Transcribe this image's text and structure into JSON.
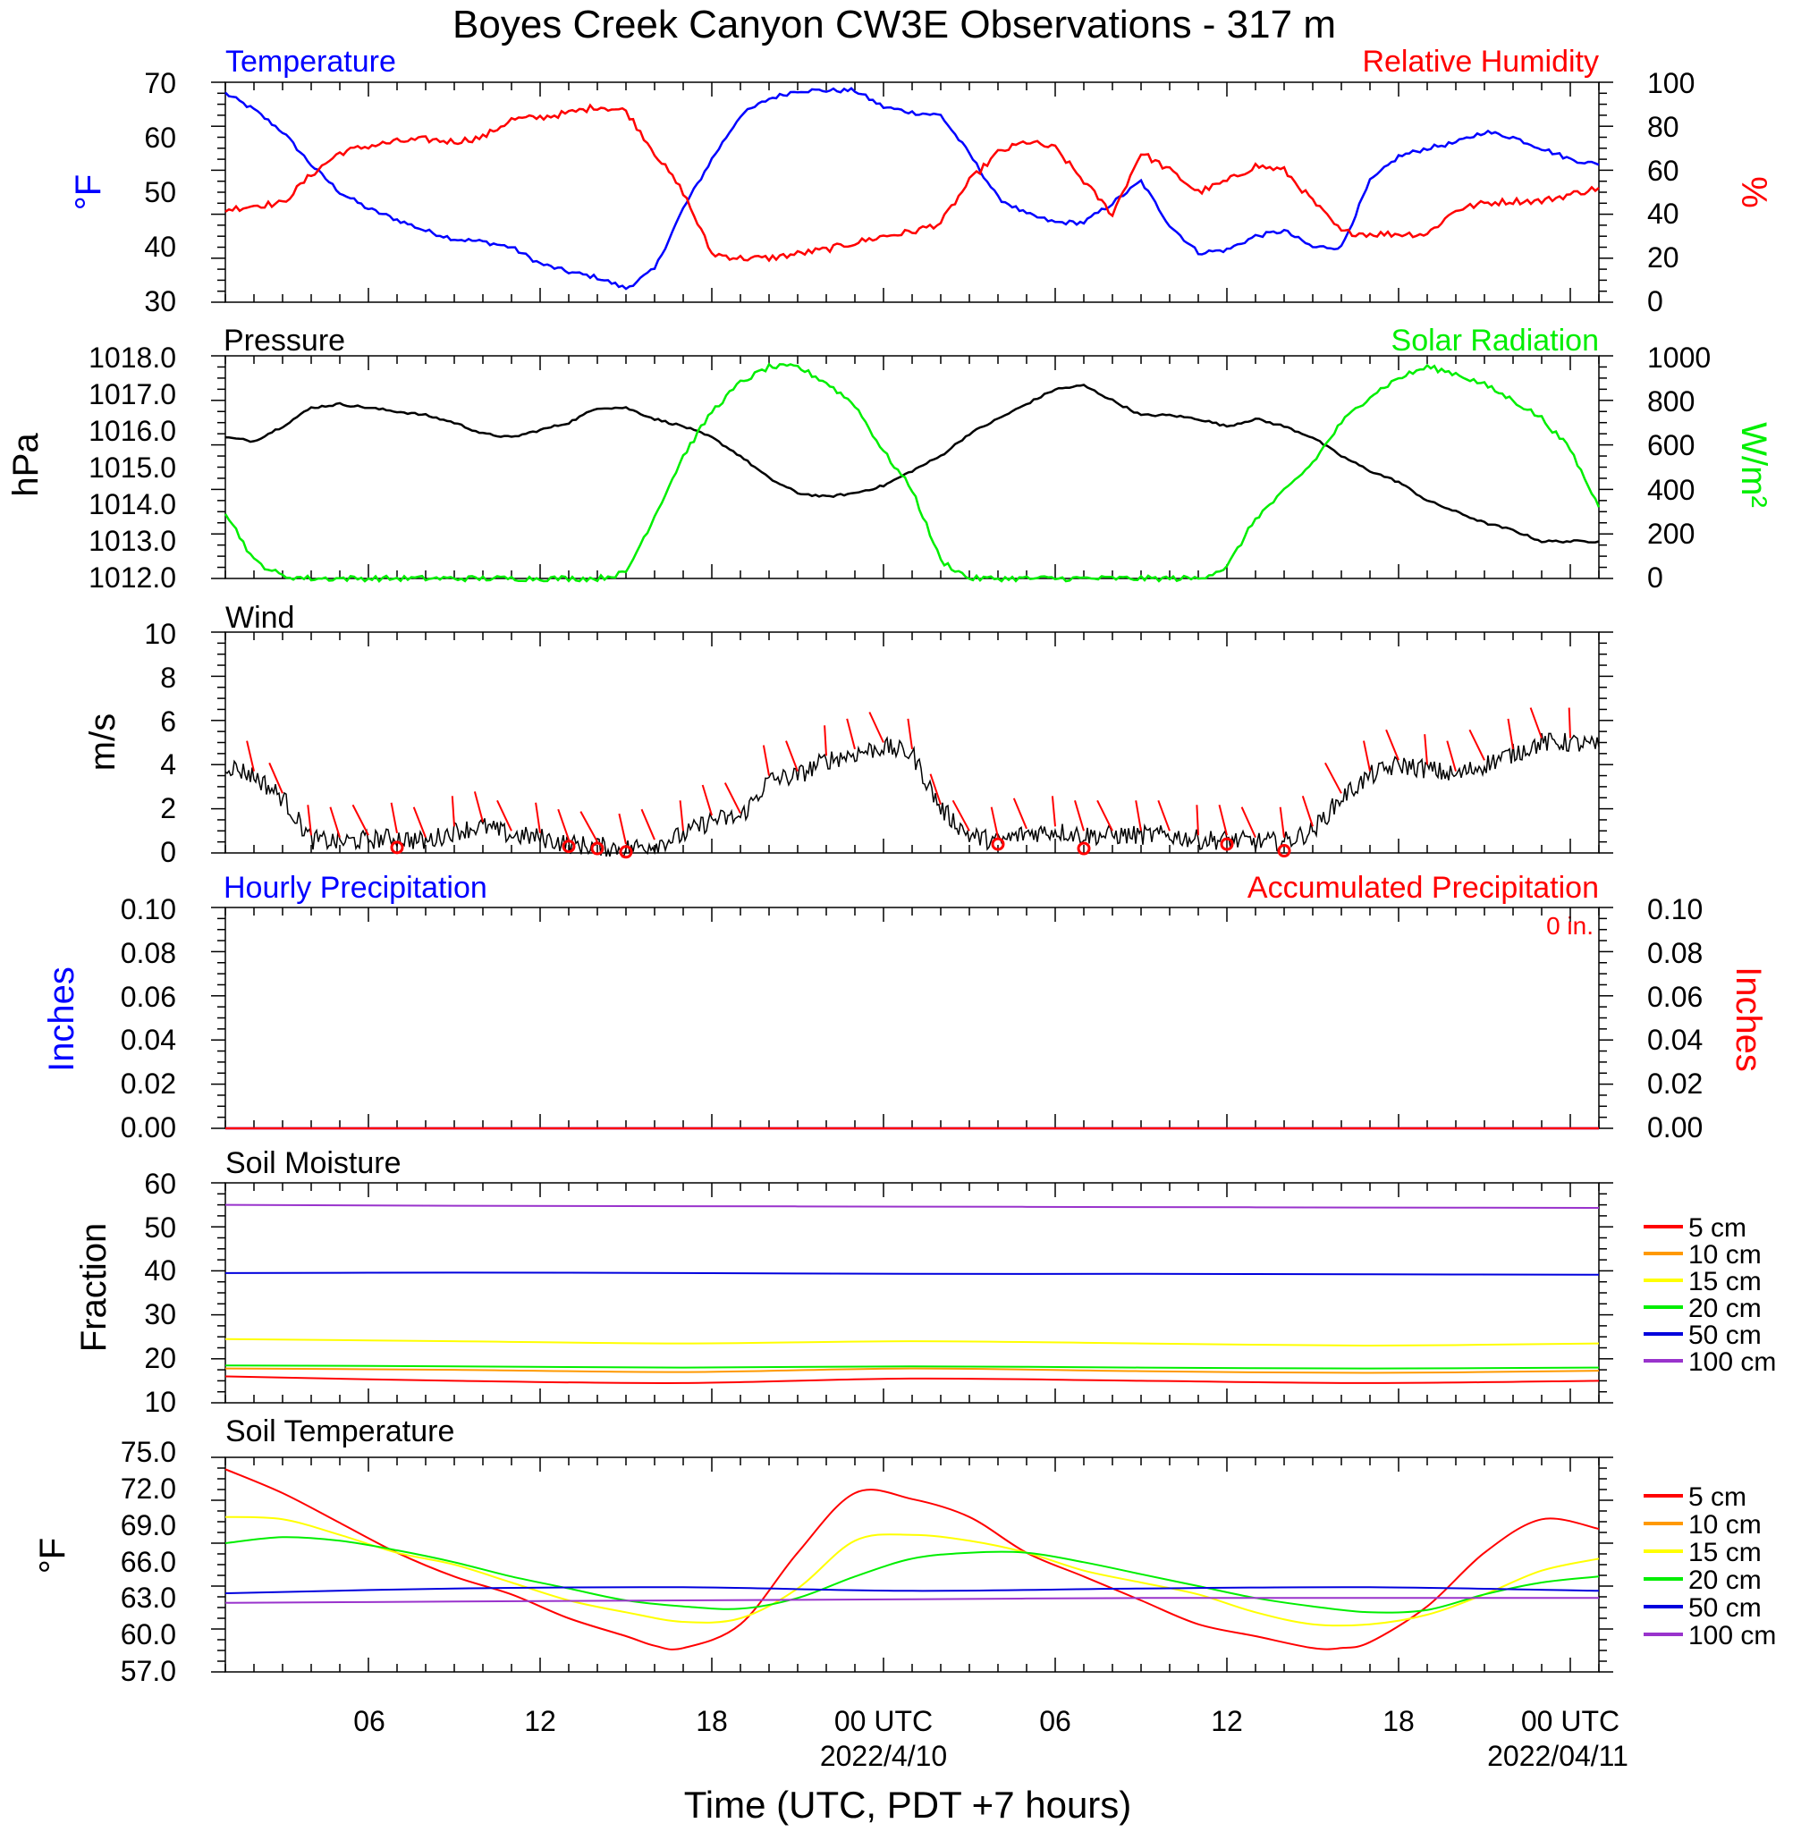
{
  "title": "Boyes Creek Canyon CW3E Observations - 317 m",
  "xaxis": {
    "label": "Time (UTC, PDT +7 hours)",
    "tick_labels": [
      "06",
      "12",
      "18",
      "00 UTC",
      "06",
      "12",
      "18",
      "00 UTC"
    ],
    "date_labels": [
      "2022/4/10",
      "2022/04/11"
    ]
  },
  "colors": {
    "temperature": "#0000ff",
    "rh": "#ff0000",
    "solar": "#00ee00",
    "black": "#000000",
    "cm5": "#ff0000",
    "cm10": "#ff9900",
    "cm15": "#ffff00",
    "cm20": "#00ee00",
    "cm50": "#0000dd",
    "cm100": "#9933cc"
  },
  "panels": {
    "temp_rh": {
      "left_title": "Temperature",
      "right_title": "Relative Humidity",
      "left_unit": "°F",
      "right_unit": "%",
      "left_ticks": [
        "70",
        "60",
        "50",
        "40",
        "30"
      ],
      "right_ticks": [
        "100",
        "80",
        "60",
        "40",
        "20",
        "0"
      ]
    },
    "pressure_solar": {
      "left_title": "Pressure",
      "right_title": "Solar Radiation",
      "left_unit": "hPa",
      "right_unit": "W/m²",
      "left_ticks": [
        "1018.0",
        "1017.0",
        "1016.0",
        "1015.0",
        "1014.0",
        "1013.0",
        "1012.0"
      ],
      "right_ticks": [
        "1000",
        "800",
        "600",
        "400",
        "200",
        "0"
      ]
    },
    "wind": {
      "left_title": "Wind",
      "left_unit": "m/s",
      "left_ticks": [
        "10",
        "8",
        "6",
        "4",
        "2",
        "0"
      ]
    },
    "precip": {
      "left_title": "Hourly Precipitation",
      "right_title": "Accumulated Precipitation",
      "accum_label": "0 in.",
      "left_unit": "Inches",
      "right_unit": "Inches",
      "left_ticks": [
        "0.10",
        "0.08",
        "0.06",
        "0.04",
        "0.02",
        "0.00"
      ],
      "right_ticks": [
        "0.10",
        "0.08",
        "0.06",
        "0.04",
        "0.02",
        "0.00"
      ]
    },
    "soil_moisture": {
      "left_title": "Soil Moisture",
      "left_unit": "Fraction",
      "left_ticks": [
        "60",
        "50",
        "40",
        "30",
        "20",
        "10"
      ],
      "legend": [
        "5 cm",
        "10 cm",
        "15 cm",
        "20 cm",
        "50 cm",
        "100 cm"
      ]
    },
    "soil_temp": {
      "left_title": "Soil Temperature",
      "left_unit": "°F",
      "left_ticks": [
        "75.0",
        "72.0",
        "69.0",
        "66.0",
        "63.0",
        "60.0",
        "57.0"
      ],
      "legend": [
        "5 cm",
        "10 cm",
        "15 cm",
        "20 cm",
        "50 cm",
        "100 cm"
      ]
    }
  },
  "chart_data": [
    {
      "type": "line",
      "title": "Temperature / Relative Humidity",
      "x_unit": "hours since 2022-04-09 01 UTC",
      "xlim": [
        0,
        48
      ],
      "ylim_left": [
        30,
        70
      ],
      "ylim_right": [
        0,
        100
      ],
      "series": [
        {
          "name": "Temperature",
          "axis": "left",
          "x": [
            0,
            1,
            2,
            3,
            4,
            5,
            6,
            7,
            8,
            9,
            10,
            11,
            12,
            13,
            14,
            15,
            16,
            17,
            18,
            19,
            20,
            21,
            22,
            23,
            24,
            25,
            26,
            27,
            28,
            29,
            30,
            31,
            32,
            33,
            34,
            35,
            36,
            37,
            38,
            39,
            40,
            41,
            42,
            43,
            44,
            45,
            46,
            47,
            48
          ],
          "y": [
            68,
            65,
            61,
            55,
            50,
            47,
            45,
            43,
            41.5,
            41,
            40,
            37,
            35.5,
            34.5,
            32.5,
            36,
            47,
            56,
            64,
            67,
            68.5,
            68.5,
            68.5,
            65.5,
            64.5,
            64,
            57,
            49,
            46,
            44.5,
            44.5,
            48,
            52,
            44,
            39,
            39.5,
            42,
            43,
            40,
            40,
            52,
            56.5,
            58,
            59,
            61,
            60,
            58,
            56,
            55
          ]
        },
        {
          "name": "Relative Humidity",
          "axis": "right",
          "x": [
            0,
            1,
            2,
            3,
            4,
            5,
            6,
            7,
            8,
            9,
            10,
            11,
            12,
            13,
            14,
            15,
            16,
            17,
            18,
            19,
            20,
            21,
            22,
            23,
            24,
            25,
            26,
            27,
            28,
            29,
            30,
            31,
            32,
            33,
            34,
            35,
            36,
            37,
            38,
            39,
            40,
            41,
            42,
            43,
            44,
            45,
            46,
            47,
            48
          ],
          "y": [
            42,
            44,
            45,
            58,
            68,
            71,
            73,
            74,
            73,
            75,
            83,
            84,
            86,
            89,
            87,
            68,
            50,
            22,
            20,
            20,
            22,
            24,
            27,
            30,
            32,
            36,
            55,
            68,
            73,
            70,
            55,
            40,
            68,
            60,
            50,
            55,
            62,
            60,
            46,
            32,
            31,
            31,
            31,
            42,
            45,
            46,
            46,
            49,
            52
          ]
        }
      ]
    },
    {
      "type": "line",
      "title": "Pressure / Solar Radiation",
      "x_unit": "hours since 2022-04-09 01 UTC",
      "xlim": [
        0,
        48
      ],
      "ylim_left": [
        1012,
        1018
      ],
      "ylim_right": [
        0,
        1000
      ],
      "series": [
        {
          "name": "Pressure",
          "axis": "left",
          "x": [
            0,
            1,
            2,
            3,
            4,
            5,
            6,
            7,
            8,
            9,
            10,
            11,
            12,
            13,
            14,
            15,
            16,
            17,
            18,
            19,
            20,
            21,
            22,
            23,
            24,
            25,
            26,
            27,
            28,
            29,
            30,
            31,
            32,
            33,
            34,
            35,
            36,
            37,
            38,
            39,
            40,
            41,
            42,
            43,
            44,
            45,
            46,
            47,
            48
          ],
          "y": [
            1015.8,
            1015.7,
            1016.1,
            1016.6,
            1016.7,
            1016.6,
            1016.5,
            1016.4,
            1016.2,
            1015.9,
            1015.8,
            1016.0,
            1016.2,
            1016.6,
            1016.6,
            1016.3,
            1016.1,
            1015.8,
            1015.3,
            1014.7,
            1014.3,
            1014.2,
            1014.3,
            1014.5,
            1014.9,
            1015.3,
            1015.9,
            1016.3,
            1016.7,
            1017.1,
            1017.2,
            1016.8,
            1016.4,
            1016.4,
            1016.3,
            1016.1,
            1016.3,
            1016.1,
            1015.8,
            1015.3,
            1014.9,
            1014.6,
            1014.1,
            1013.8,
            1013.5,
            1013.3,
            1013.0,
            1013.0,
            1013.0
          ]
        },
        {
          "name": "Solar Radiation",
          "axis": "right",
          "x": [
            0,
            1,
            2,
            3,
            4,
            5,
            6,
            7,
            8,
            9,
            10,
            11,
            12,
            13,
            14,
            15,
            16,
            17,
            18,
            19,
            20,
            21,
            22,
            23,
            24,
            25,
            26,
            27,
            28,
            29,
            30,
            31,
            32,
            33,
            34,
            35,
            36,
            37,
            38,
            39,
            40,
            41,
            42,
            43,
            44,
            45,
            46,
            47,
            48
          ],
          "y": [
            300,
            80,
            10,
            0,
            0,
            0,
            0,
            0,
            0,
            0,
            0,
            0,
            0,
            0,
            25,
            280,
            550,
            750,
            880,
            950,
            950,
            880,
            780,
            570,
            400,
            80,
            0,
            0,
            0,
            0,
            0,
            0,
            0,
            0,
            0,
            50,
            270,
            390,
            520,
            700,
            820,
            900,
            950,
            920,
            870,
            800,
            720,
            580,
            320
          ]
        }
      ]
    },
    {
      "type": "line",
      "title": "Wind",
      "x_unit": "hours since 2022-04-09 01 UTC",
      "xlim": [
        0,
        48
      ],
      "ylim": [
        0,
        10
      ],
      "series": [
        {
          "name": "Wind speed",
          "x": [
            0,
            1,
            2,
            3,
            4,
            5,
            6,
            7,
            8,
            9,
            10,
            11,
            12,
            13,
            14,
            15,
            16,
            17,
            18,
            19,
            20,
            21,
            22,
            23,
            24,
            25,
            26,
            27,
            28,
            29,
            30,
            31,
            32,
            33,
            34,
            35,
            36,
            37,
            38,
            39,
            40,
            41,
            42,
            43,
            44,
            45,
            46,
            47,
            48
          ],
          "y": [
            4.0,
            3.5,
            2.5,
            0.6,
            0.5,
            0.6,
            0.7,
            0.5,
            1.0,
            1.2,
            0.8,
            0.7,
            0.4,
            0.3,
            0.2,
            0.4,
            0.8,
            1.5,
            1.6,
            3.3,
            3.5,
            4.2,
            4.5,
            4.8,
            4.5,
            2.0,
            0.8,
            0.5,
            0.9,
            1.0,
            0.8,
            0.8,
            0.8,
            0.8,
            0.6,
            0.6,
            0.5,
            0.5,
            1.0,
            2.5,
            3.5,
            4.0,
            3.8,
            3.5,
            4.0,
            4.5,
            5.0,
            5.0,
            4.8
          ]
        },
        {
          "name": "Calm markers",
          "x": [
            6,
            12,
            13,
            14,
            27,
            30,
            35,
            37
          ],
          "y": [
            0.25,
            0.3,
            0.2,
            0.05,
            0.4,
            0.2,
            0.4,
            0.1
          ]
        }
      ]
    },
    {
      "type": "line",
      "title": "Precipitation",
      "x_unit": "hours since 2022-04-09 01 UTC",
      "xlim": [
        0,
        48
      ],
      "ylim_left": [
        0,
        0.1
      ],
      "ylim_right": [
        0,
        0.1
      ],
      "series": [
        {
          "name": "Hourly Precipitation",
          "axis": "left",
          "x": [
            0,
            48
          ],
          "y": [
            0,
            0
          ]
        },
        {
          "name": "Accumulated Precipitation",
          "axis": "right",
          "x": [
            0,
            48
          ],
          "y": [
            0,
            0
          ]
        }
      ]
    },
    {
      "type": "line",
      "title": "Soil Moisture",
      "x_unit": "hours since 2022-04-09 01 UTC",
      "xlim": [
        0,
        48
      ],
      "ylim": [
        10,
        60
      ],
      "series": [
        {
          "name": "5 cm",
          "x": [
            0,
            8,
            16,
            24,
            32,
            40,
            48
          ],
          "y": [
            16,
            15,
            14.5,
            15.5,
            15,
            14.5,
            15
          ]
        },
        {
          "name": "10 cm",
          "x": [
            0,
            8,
            16,
            24,
            32,
            40,
            48
          ],
          "y": [
            17.8,
            17.5,
            17,
            17.8,
            17.2,
            16.8,
            17.3
          ]
        },
        {
          "name": "15 cm",
          "x": [
            0,
            8,
            16,
            24,
            32,
            40,
            48
          ],
          "y": [
            24.5,
            24,
            23.5,
            24,
            23.5,
            23,
            23.5
          ]
        },
        {
          "name": "20 cm",
          "x": [
            0,
            8,
            16,
            24,
            32,
            40,
            48
          ],
          "y": [
            18.5,
            18.3,
            18,
            18.3,
            18,
            17.8,
            18
          ]
        },
        {
          "name": "50 cm",
          "x": [
            0,
            8,
            16,
            24,
            32,
            40,
            48
          ],
          "y": [
            39.5,
            39.6,
            39.5,
            39.3,
            39.3,
            39.2,
            39.1
          ]
        },
        {
          "name": "100 cm",
          "x": [
            0,
            8,
            16,
            24,
            32,
            40,
            48
          ],
          "y": [
            55,
            54.8,
            54.7,
            54.6,
            54.5,
            54.4,
            54.3
          ]
        }
      ]
    },
    {
      "type": "line",
      "title": "Soil Temperature",
      "x_unit": "hours since 2022-04-09 01 UTC",
      "xlim": [
        0,
        48
      ],
      "ylim": [
        57,
        75
      ],
      "series": [
        {
          "name": "5 cm",
          "x": [
            0,
            2,
            4,
            6,
            8,
            10,
            12,
            14,
            15,
            16,
            18,
            20,
            22,
            24,
            26,
            28,
            30,
            32,
            34,
            36,
            38,
            39,
            40,
            42,
            44,
            46,
            48
          ],
          "y": [
            74,
            72,
            69.5,
            67,
            65,
            63.5,
            61.5,
            60,
            59.2,
            59,
            61,
            67,
            72,
            71.5,
            70,
            67,
            65,
            63,
            61,
            60,
            59,
            59,
            59.5,
            62.5,
            67,
            69.8,
            69
          ]
        },
        {
          "name": "15 cm",
          "x": [
            0,
            2,
            4,
            6,
            8,
            10,
            12,
            14,
            16,
            18,
            20,
            22,
            24,
            26,
            28,
            30,
            32,
            34,
            36,
            38,
            40,
            42,
            44,
            46,
            48
          ],
          "y": [
            70,
            69.8,
            68.5,
            67,
            66,
            64.5,
            63,
            62,
            61.2,
            61.5,
            64,
            68,
            68.5,
            68,
            67,
            65.5,
            64.5,
            63.5,
            62,
            61,
            61,
            61.8,
            63.5,
            65.5,
            66.5
          ]
        },
        {
          "name": "20 cm",
          "x": [
            0,
            2,
            4,
            6,
            8,
            10,
            12,
            14,
            16,
            18,
            20,
            22,
            24,
            26,
            28,
            30,
            32,
            34,
            36,
            38,
            40,
            42,
            44,
            46,
            48
          ],
          "y": [
            67.8,
            68.3,
            68,
            67.2,
            66.2,
            65,
            64,
            63,
            62.5,
            62.3,
            63.2,
            65,
            66.5,
            67,
            67,
            66.2,
            65.2,
            64.2,
            63.2,
            62.5,
            62,
            62.2,
            63.5,
            64.5,
            65
          ]
        },
        {
          "name": "50 cm",
          "x": [
            0,
            8,
            16,
            24,
            32,
            40,
            48
          ],
          "y": [
            63.6,
            64,
            64.1,
            63.8,
            64,
            64.1,
            63.8
          ]
        },
        {
          "name": "100 cm",
          "x": [
            0,
            8,
            16,
            24,
            32,
            40,
            48
          ],
          "y": [
            62.8,
            62.9,
            63.0,
            63.1,
            63.2,
            63.2,
            63.2
          ]
        }
      ]
    }
  ]
}
